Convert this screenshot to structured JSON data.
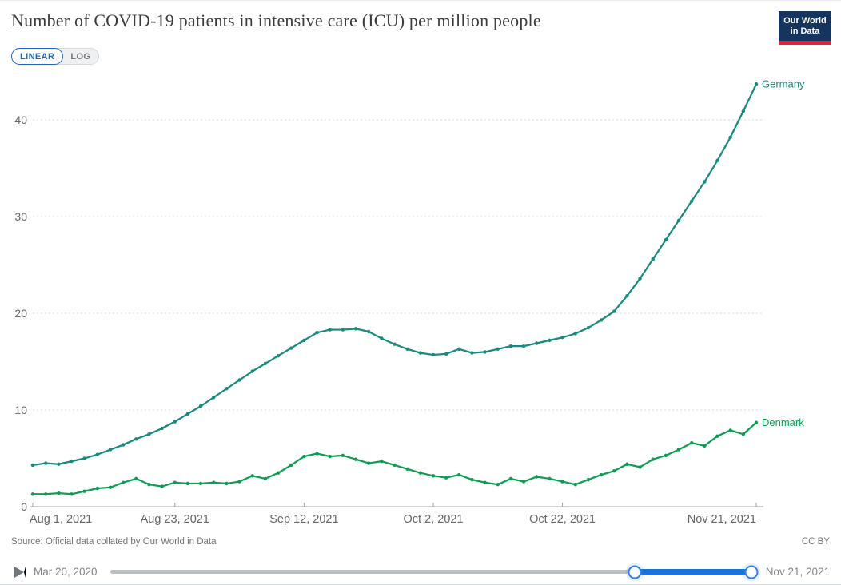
{
  "header": {
    "title": "Number of COVID-19 patients in intensive care (ICU) per million people",
    "logo_line1": "Our World",
    "logo_line2": "in Data"
  },
  "controls": {
    "linear_label": "LINEAR",
    "log_label": "LOG",
    "active_scale": "LINEAR"
  },
  "chart_data": {
    "type": "line",
    "title": "Number of COVID-19 patients in intensive care (ICU) per million people",
    "xlabel": "",
    "ylabel": "",
    "x_start_date": "Aug 1, 2021",
    "x_end_date": "Nov 21, 2021",
    "x_days_step": 2,
    "x_tick_labels": [
      "Aug 1, 2021",
      "Aug 23, 2021",
      "Sep 12, 2021",
      "Oct 2, 2021",
      "Oct 22, 2021",
      "Nov 21, 2021"
    ],
    "x_tick_days": [
      0,
      22,
      42,
      62,
      82,
      112
    ],
    "y_ticks": [
      0,
      10,
      20,
      30,
      40
    ],
    "ylim": [
      0,
      44
    ],
    "grid": "dashed-horizontal",
    "legend_position": "end-of-line-labels",
    "series": [
      {
        "name": "Germany",
        "color": "#158a7d",
        "values": [
          4.3,
          4.5,
          4.4,
          4.7,
          5.0,
          5.4,
          5.9,
          6.4,
          7.0,
          7.5,
          8.1,
          8.8,
          9.6,
          10.4,
          11.3,
          12.2,
          13.1,
          14.0,
          14.8,
          15.6,
          16.4,
          17.2,
          18.0,
          18.3,
          18.3,
          18.4,
          18.1,
          17.4,
          16.8,
          16.3,
          15.9,
          15.7,
          15.8,
          16.3,
          15.9,
          16.0,
          16.3,
          16.6,
          16.6,
          16.9,
          17.2,
          17.5,
          17.9,
          18.5,
          19.3,
          20.2,
          21.8,
          23.6,
          25.6,
          27.6,
          29.6,
          31.6,
          33.6,
          35.8,
          38.2,
          40.9,
          43.7
        ]
      },
      {
        "name": "Denmark",
        "color": "#0b9e52",
        "values": [
          1.3,
          1.3,
          1.4,
          1.3,
          1.6,
          1.9,
          2.0,
          2.5,
          2.9,
          2.3,
          2.1,
          2.5,
          2.4,
          2.4,
          2.5,
          2.4,
          2.6,
          3.2,
          2.9,
          3.5,
          4.3,
          5.2,
          5.5,
          5.2,
          5.3,
          4.9,
          4.5,
          4.7,
          4.3,
          3.9,
          3.5,
          3.2,
          3.0,
          3.3,
          2.8,
          2.5,
          2.3,
          2.9,
          2.6,
          3.1,
          2.9,
          2.6,
          2.3,
          2.8,
          3.3,
          3.7,
          4.4,
          4.1,
          4.9,
          5.3,
          5.9,
          6.6,
          6.3,
          7.3,
          7.9,
          7.5,
          8.7
        ]
      }
    ]
  },
  "footer": {
    "source": "Source: Official data collated by Our World in Data",
    "license": "CC BY"
  },
  "timeline": {
    "start_label": "Mar 20, 2020",
    "end_label": "Nov 21, 2021",
    "selected_start_pct": 81.6,
    "selected_end_pct": 99.8
  },
  "colors": {
    "accent_blue": "#2166bd",
    "timeline_blue": "#1673e0",
    "logo_navy": "#16355e",
    "logo_red": "#e0233c",
    "grid": "#d9d9d9",
    "axis": "#a3a3a3",
    "tick_text": "#666666"
  }
}
